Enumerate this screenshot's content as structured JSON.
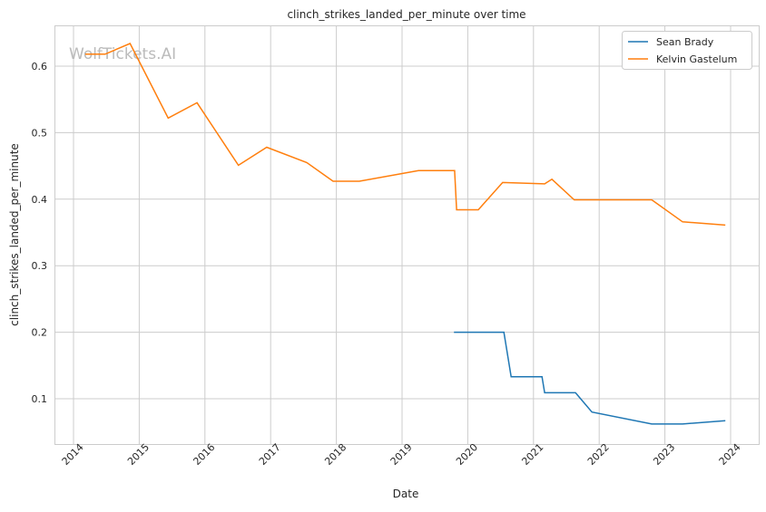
{
  "chart_data": {
    "type": "line",
    "title": "clinch_strikes_landed_per_minute over time",
    "xlabel": "Date",
    "ylabel": "clinch_strikes_landed_per_minute",
    "watermark": "WolfTickets.AI",
    "xlim": [
      2013.7,
      2024.4
    ],
    "ylim": [
      0.032,
      0.661
    ],
    "xticks": [
      2014,
      2015,
      2016,
      2017,
      2018,
      2019,
      2020,
      2021,
      2022,
      2023,
      2024
    ],
    "xtick_labels": [
      "2014",
      "2015",
      "2016",
      "2017",
      "2018",
      "2019",
      "2020",
      "2021",
      "2022",
      "2023",
      "2024"
    ],
    "yticks": [
      0.1,
      0.2,
      0.3,
      0.4,
      0.5,
      0.6
    ],
    "ytick_labels": [
      "0.1",
      "0.2",
      "0.3",
      "0.4",
      "0.5",
      "0.6"
    ],
    "grid": true,
    "legend_position": "top-right",
    "series": [
      {
        "name": "Sean Brady",
        "color": "#1f77b4",
        "x": [
          2019.79,
          2020.55,
          2020.66,
          2021.13,
          2021.17,
          2021.64,
          2021.89,
          2022.8,
          2023.27,
          2023.92
        ],
        "y": [
          0.2,
          0.2,
          0.133,
          0.133,
          0.109,
          0.109,
          0.08,
          0.062,
          0.062,
          0.067
        ]
      },
      {
        "name": "Kelvin Gastelum",
        "color": "#ff7f0e",
        "x": [
          2014.18,
          2014.48,
          2014.86,
          2015.44,
          2015.88,
          2016.51,
          2016.94,
          2017.55,
          2017.95,
          2018.35,
          2019.25,
          2019.8,
          2019.83,
          2020.16,
          2020.53,
          2021.17,
          2021.28,
          2021.62,
          2022.8,
          2023.27,
          2023.92
        ],
        "y": [
          0.618,
          0.618,
          0.634,
          0.522,
          0.545,
          0.451,
          0.478,
          0.455,
          0.427,
          0.427,
          0.443,
          0.443,
          0.384,
          0.384,
          0.425,
          0.423,
          0.43,
          0.399,
          0.399,
          0.366,
          0.361
        ]
      }
    ]
  }
}
